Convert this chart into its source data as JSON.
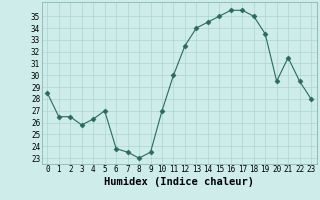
{
  "x": [
    0,
    1,
    2,
    3,
    4,
    5,
    6,
    7,
    8,
    9,
    10,
    11,
    12,
    13,
    14,
    15,
    16,
    17,
    18,
    19,
    20,
    21,
    22,
    23
  ],
  "y": [
    28.5,
    26.5,
    26.5,
    25.8,
    26.3,
    27.0,
    23.8,
    23.5,
    23.0,
    23.5,
    27.0,
    30.0,
    32.5,
    34.0,
    34.5,
    35.0,
    35.5,
    35.5,
    35.0,
    33.5,
    29.5,
    31.5,
    29.5,
    28.0
  ],
  "line_color": "#2a6b5e",
  "marker": "D",
  "markersize": 2.5,
  "bg_color": "#cdecea",
  "grid_color": "#aed4d0",
  "xlabel": "Humidex (Indice chaleur)",
  "yticks": [
    23,
    24,
    25,
    26,
    27,
    28,
    29,
    30,
    31,
    32,
    33,
    34,
    35
  ],
  "ylim": [
    22.5,
    36.2
  ],
  "xlim": [
    -0.5,
    23.5
  ],
  "xticks": [
    0,
    1,
    2,
    3,
    4,
    5,
    6,
    7,
    8,
    9,
    10,
    11,
    12,
    13,
    14,
    15,
    16,
    17,
    18,
    19,
    20,
    21,
    22,
    23
  ],
  "tick_fontsize": 5.5,
  "label_fontsize": 7.5
}
